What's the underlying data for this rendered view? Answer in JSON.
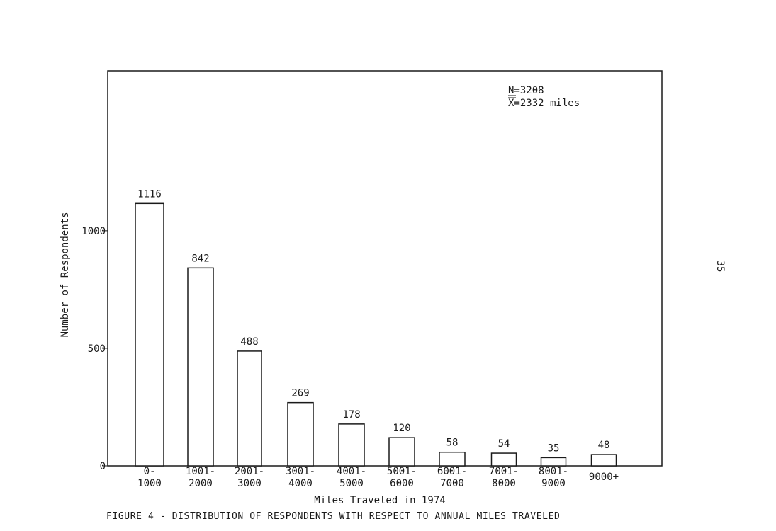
{
  "page_number": "35",
  "caption": "FIGURE 4 - DISTRIBUTION OF RESPONDENTS WITH RESPECT TO ANNUAL MILES TRAVELED",
  "chart_data": {
    "type": "bar",
    "categories": [
      [
        "0-",
        "1000"
      ],
      [
        "1001-",
        "2000"
      ],
      [
        "2001-",
        "3000"
      ],
      [
        "3001-",
        "4000"
      ],
      [
        "4001-",
        "5000"
      ],
      [
        "5001-",
        "6000"
      ],
      [
        "6001-",
        "7000"
      ],
      [
        "7001-",
        "8000"
      ],
      [
        "8001-",
        "9000"
      ],
      [
        "9000+"
      ]
    ],
    "values": [
      1116,
      842,
      488,
      269,
      178,
      120,
      58,
      54,
      35,
      48
    ],
    "value_labels": [
      "1116",
      "842",
      "488",
      "269",
      "178",
      "120",
      "58",
      "54",
      "35",
      "48"
    ],
    "xlabel": "Miles Traveled in 1974",
    "ylabel": "Number of Respondents",
    "yticks": [
      0,
      500,
      1000
    ],
    "ylim": [
      0,
      1680
    ],
    "annotation": {
      "line1": "N=3208",
      "line2": "X=2332 miles"
    },
    "grid": false,
    "bar_fill": "#ffffff",
    "line_color": "#1a1a1a"
  }
}
